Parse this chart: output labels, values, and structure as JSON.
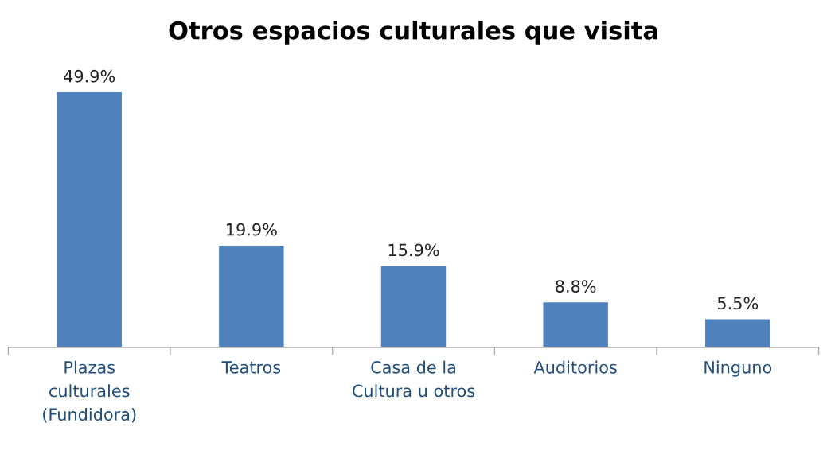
{
  "chart_data": {
    "type": "bar",
    "title": "Otros espacios culturales que visita",
    "categories": [
      "Plazas\nculturales\n(Fundidora)",
      "Teatros",
      "Casa de la\nCultura u otros",
      "Auditorios",
      "Ninguno"
    ],
    "values": [
      49.9,
      19.9,
      15.9,
      8.8,
      5.5
    ],
    "value_labels": [
      "49.9%",
      "19.9%",
      "15.9%",
      "8.8%",
      "5.5%"
    ],
    "color": "#4f81bd",
    "grid": false,
    "legend": false
  }
}
